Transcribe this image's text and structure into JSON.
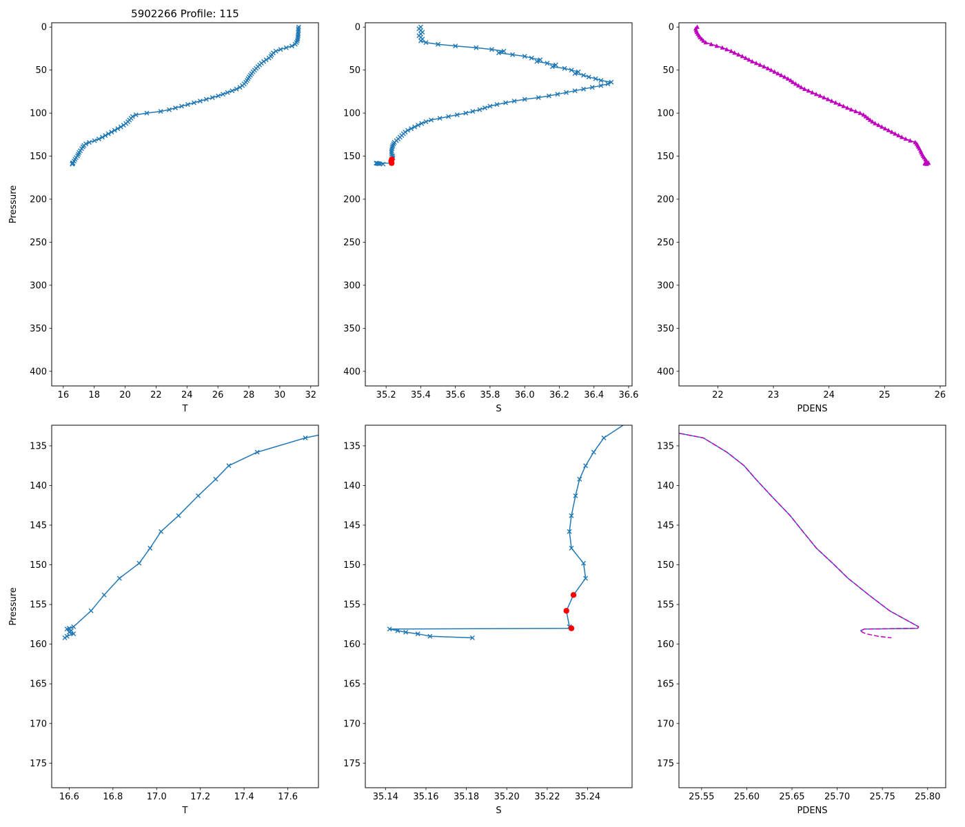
{
  "figure": {
    "title": "5902266 Profile: 115",
    "background": "#ffffff"
  },
  "chart_data": {
    "type": "line",
    "title": "5902266 Profile: 115",
    "colors": {
      "profile_blue": "#1f77b4",
      "flag_red": "#ff0000",
      "pdens_magenta": "#bf00bf"
    },
    "shared_profile": {
      "pressure": [
        0,
        2,
        4,
        6,
        8,
        10,
        12,
        14,
        16,
        18,
        20,
        22,
        24,
        26,
        28,
        30,
        32,
        34,
        36,
        38,
        40,
        42,
        44,
        46,
        48,
        50,
        52,
        54,
        56,
        58,
        60,
        62,
        64,
        66,
        68,
        70,
        72,
        74,
        76,
        78,
        80,
        82,
        84,
        86,
        88,
        90,
        92,
        94,
        96,
        98,
        100,
        102,
        104,
        106,
        108,
        110,
        112,
        114,
        116,
        118,
        120,
        122,
        124,
        126,
        128,
        130,
        132,
        134,
        135.8,
        137.5,
        139.2,
        141.3,
        143.8,
        145.8,
        147.9,
        149.8,
        151.7,
        153.8,
        155.8,
        157.8,
        158,
        158.1,
        158.3,
        158.5,
        158.7,
        159,
        159.2
      ],
      "T": [
        31.22,
        31.2,
        31.21,
        31.19,
        31.2,
        31.18,
        31.17,
        31.16,
        31.13,
        31.08,
        31,
        30.78,
        30.42,
        30.05,
        29.75,
        29.58,
        29.48,
        29.42,
        29.3,
        29.12,
        28.96,
        28.82,
        28.7,
        28.58,
        28.47,
        28.37,
        28.27,
        28.18,
        28.1,
        28.02,
        27.95,
        27.88,
        27.8,
        27.7,
        27.58,
        27.42,
        27.2,
        26.92,
        26.62,
        26.32,
        26.02,
        25.65,
        25.25,
        24.85,
        24.45,
        24.05,
        23.65,
        23.25,
        22.85,
        22.3,
        21.4,
        20.7,
        20.48,
        20.38,
        20.28,
        20.18,
        20.05,
        19.9,
        19.72,
        19.52,
        19.32,
        19.12,
        18.92,
        18.72,
        18.52,
        18.3,
        18.02,
        17.68,
        17.46,
        17.33,
        17.27,
        17.19,
        17.1,
        17.02,
        16.97,
        16.92,
        16.83,
        16.76,
        16.7,
        16.62,
        16.6,
        16.59,
        16.61,
        16.6,
        16.62,
        16.59,
        16.58
      ],
      "S": [
        35.4,
        35.39,
        35.4,
        35.41,
        35.4,
        35.39,
        35.4,
        35.41,
        35.4,
        35.43,
        35.5,
        35.6,
        35.72,
        35.81,
        35.88,
        35.85,
        35.93,
        36,
        36.04,
        36.09,
        36.07,
        36.13,
        36.18,
        36.16,
        36.23,
        36.27,
        36.31,
        36.29,
        36.34,
        36.37,
        36.41,
        36.44,
        36.5,
        36.48,
        36.44,
        36.39,
        36.34,
        36.29,
        36.24,
        36.19,
        36.14,
        36.08,
        36,
        35.94,
        35.89,
        35.84,
        35.8,
        35.77,
        35.74,
        35.7,
        35.66,
        35.61,
        35.56,
        35.51,
        35.46,
        35.43,
        35.405,
        35.385,
        35.365,
        35.345,
        35.325,
        35.31,
        35.3,
        35.29,
        35.28,
        35.27,
        35.26,
        35.248,
        35.243,
        35.239,
        35.236,
        35.234,
        35.232,
        35.231,
        35.232,
        35.238,
        35.239,
        35.233,
        35.2295,
        35.231,
        35.232,
        35.142,
        35.146,
        35.15,
        35.156,
        35.162,
        35.183
      ],
      "PDENS": [
        21.63,
        21.6,
        21.61,
        21.62,
        21.64,
        21.66,
        21.68,
        21.71,
        21.74,
        21.78,
        21.88,
        21.98,
        22.08,
        22.16,
        22.24,
        22.3,
        22.37,
        22.44,
        22.5,
        22.56,
        22.62,
        22.69,
        22.76,
        22.83,
        22.9,
        22.96,
        23.02,
        23.08,
        23.14,
        23.2,
        23.26,
        23.31,
        23.35,
        23.4,
        23.45,
        23.5,
        23.56,
        23.63,
        23.7,
        23.77,
        23.84,
        23.91,
        23.98,
        24.05,
        24.12,
        24.19,
        24.26,
        24.33,
        24.4,
        24.48,
        24.56,
        24.62,
        24.66,
        24.7,
        24.74,
        24.78,
        24.83,
        24.89,
        24.95,
        25.01,
        25.07,
        25.13,
        25.19,
        25.25,
        25.31,
        25.38,
        25.46,
        25.552,
        25.578,
        25.597,
        25.61,
        25.627,
        25.648,
        25.662,
        25.677,
        25.695,
        25.712,
        25.735,
        25.758,
        25.79,
        25.789,
        25.73,
        25.726,
        25.728,
        25.732,
        25.745,
        25.76
      ],
      "S_flagged": [
        35.233,
        35.2295,
        35.232
      ],
      "pressure_flagged": [
        153.8,
        155.8,
        158
      ]
    },
    "charts": [
      {
        "name": "t-profile-full",
        "title": "5902266 Profile: 115",
        "xlabel": "T",
        "ylabel": "Pressure",
        "xlim": [
          15.25,
          32.5
        ],
        "ylim": [
          -5,
          417
        ],
        "y_inverted": true,
        "xticks": [
          16,
          18,
          20,
          22,
          24,
          26,
          28,
          30,
          32
        ],
        "xtick_labels": [
          "16",
          "18",
          "20",
          "22",
          "24",
          "26",
          "28",
          "30",
          "32"
        ],
        "yticks": [
          0,
          50,
          100,
          150,
          200,
          250,
          300,
          350,
          400
        ],
        "ytick_labels": [
          "0",
          "50",
          "100",
          "150",
          "200",
          "250",
          "300",
          "350",
          "400"
        ],
        "series": [
          {
            "name": "T",
            "x_ref": "T",
            "y_ref": "pressure",
            "color_ref": "profile_blue",
            "marker": "x",
            "line": true
          }
        ]
      },
      {
        "name": "s-profile-full",
        "xlabel": "S",
        "ylabel": "",
        "xlim": [
          35.08,
          36.62
        ],
        "ylim": [
          -5,
          417
        ],
        "y_inverted": true,
        "xticks": [
          35.2,
          35.4,
          35.6,
          35.8,
          36.0,
          36.2,
          36.4,
          36.6
        ],
        "xtick_labels": [
          "35.2",
          "35.4",
          "35.6",
          "35.8",
          "36.0",
          "36.2",
          "36.4",
          "36.6"
        ],
        "yticks": [
          0,
          50,
          100,
          150,
          200,
          250,
          300,
          350,
          400
        ],
        "ytick_labels": [
          "0",
          "50",
          "100",
          "150",
          "200",
          "250",
          "300",
          "350",
          "400"
        ],
        "series": [
          {
            "name": "S",
            "x_ref": "S",
            "y_ref": "pressure",
            "color_ref": "profile_blue",
            "marker": "x",
            "line": true
          },
          {
            "name": "S-flagged",
            "x_ref": "S_flagged",
            "y_ref": "pressure_flagged",
            "color_ref": "flag_red",
            "marker": "circle",
            "line": false
          }
        ]
      },
      {
        "name": "pdens-profile-full",
        "xlabel": "PDENS",
        "ylabel": "",
        "xlim": [
          21.3,
          26.1
        ],
        "ylim": [
          -5,
          417
        ],
        "y_inverted": true,
        "xticks": [
          22,
          23,
          24,
          25,
          26
        ],
        "xtick_labels": [
          "22",
          "23",
          "24",
          "25",
          "26"
        ],
        "yticks": [
          0,
          50,
          100,
          150,
          200,
          250,
          300,
          350,
          400
        ],
        "ytick_labels": [
          "0",
          "50",
          "100",
          "150",
          "200",
          "250",
          "300",
          "350",
          "400"
        ],
        "series": [
          {
            "name": "PDENS",
            "x_ref": "PDENS",
            "y_ref": "pressure",
            "color_ref": "pdens_magenta",
            "marker": "triangle",
            "line": true,
            "width": 1.8
          }
        ]
      },
      {
        "name": "t-profile-zoom",
        "xlabel": "T",
        "ylabel": "Pressure",
        "xlim": [
          16.52,
          17.74
        ],
        "ylim": [
          132.4,
          178.1
        ],
        "y_inverted": true,
        "xticks": [
          16.6,
          16.8,
          17.0,
          17.2,
          17.4,
          17.6
        ],
        "xtick_labels": [
          "16.6",
          "16.8",
          "17.0",
          "17.2",
          "17.4",
          "17.6"
        ],
        "yticks": [
          135,
          140,
          145,
          150,
          155,
          160,
          165,
          170,
          175
        ],
        "ytick_labels": [
          "135",
          "140",
          "145",
          "150",
          "155",
          "160",
          "165",
          "170",
          "175"
        ],
        "series": [
          {
            "name": "T",
            "x_ref": "T",
            "y_ref": "pressure",
            "color_ref": "profile_blue",
            "marker": "x",
            "line": true
          }
        ]
      },
      {
        "name": "s-profile-zoom",
        "xlabel": "S",
        "ylabel": "",
        "xlim": [
          35.13,
          35.262
        ],
        "ylim": [
          132.4,
          178.1
        ],
        "y_inverted": true,
        "xticks": [
          35.14,
          35.16,
          35.18,
          35.2,
          35.22,
          35.24
        ],
        "xtick_labels": [
          "35.14",
          "35.16",
          "35.18",
          "35.20",
          "35.22",
          "35.24"
        ],
        "yticks": [
          135,
          140,
          145,
          150,
          155,
          160,
          165,
          170,
          175
        ],
        "ytick_labels": [
          "135",
          "140",
          "145",
          "150",
          "155",
          "160",
          "165",
          "170",
          "175"
        ],
        "series": [
          {
            "name": "S",
            "x_ref": "S",
            "y_ref": "pressure",
            "color_ref": "profile_blue",
            "marker": "x",
            "line": true
          },
          {
            "name": "S-flagged",
            "x_ref": "S_flagged",
            "y_ref": "pressure_flagged",
            "color_ref": "flag_red",
            "marker": "circle",
            "line": false
          }
        ]
      },
      {
        "name": "pdens-profile-zoom",
        "xlabel": "PDENS",
        "ylabel": "",
        "xlim": [
          25.525,
          25.82
        ],
        "ylim": [
          132.4,
          178.1
        ],
        "y_inverted": true,
        "xticks": [
          25.55,
          25.6,
          25.65,
          25.7,
          25.75,
          25.8
        ],
        "xtick_labels": [
          "25.55",
          "25.60",
          "25.65",
          "25.70",
          "25.75",
          "25.80"
        ],
        "yticks": [
          135,
          140,
          145,
          150,
          155,
          160,
          165,
          170,
          175
        ],
        "ytick_labels": [
          "135",
          "140",
          "145",
          "150",
          "155",
          "160",
          "165",
          "170",
          "175"
        ],
        "series": [
          {
            "name": "PDENS-solid",
            "x_ref": "PDENS",
            "y_ref": "pressure",
            "color_ref": "profile_blue",
            "marker": "none",
            "line": true,
            "max_pressure": 158.5
          },
          {
            "name": "PDENS-dashed",
            "x_ref": "PDENS",
            "y_ref": "pressure",
            "color_ref": "pdens_magenta",
            "marker": "none",
            "line": true,
            "dash": true
          }
        ]
      }
    ]
  }
}
